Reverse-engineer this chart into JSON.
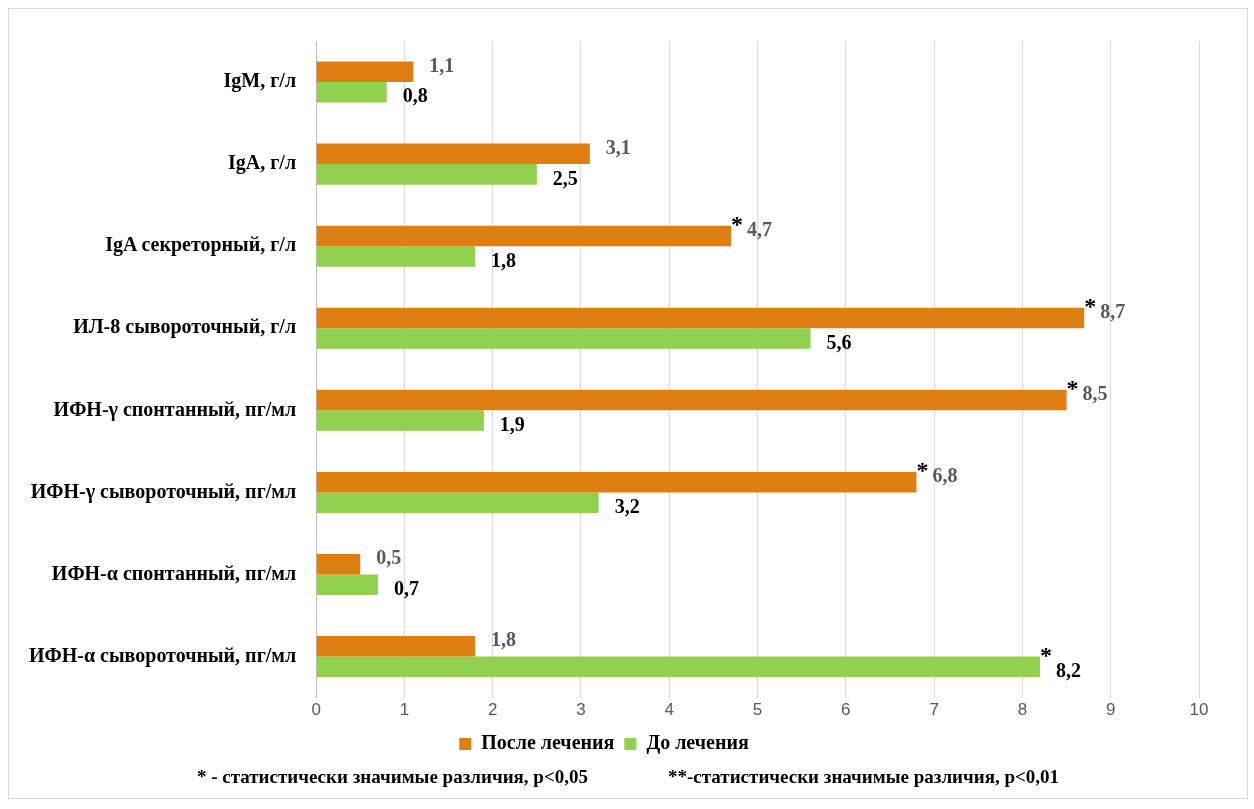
{
  "chart_data": {
    "type": "bar",
    "orientation": "horizontal",
    "categories": [
      "IgM, г/л",
      "IgA, г/л",
      "IgA секреторный, г/л",
      "ИЛ-8 сывороточный, г/л",
      "ИФН-γ спонтанный, пг/мл",
      "ИФН-γ сывороточный, пг/мл",
      "ИФН-α спонтанный, пг/мл",
      "ИФН-α сывороточный, пг/мл"
    ],
    "series": [
      {
        "name": "После лечения",
        "color": "#df7f12",
        "values": [
          1.1,
          3.1,
          4.7,
          8.7,
          8.5,
          6.8,
          0.5,
          1.8
        ],
        "value_labels": [
          "1,1",
          "3,1",
          "4,7",
          "8,7",
          "8,5",
          "6,8",
          "0,5",
          "1,8"
        ]
      },
      {
        "name": "До лечения",
        "color": "#92d050",
        "values": [
          0.8,
          2.5,
          1.8,
          5.6,
          1.9,
          3.2,
          0.7,
          8.2
        ],
        "value_labels": [
          "0,8",
          "2,5",
          "1,8",
          "5,6",
          "1,9",
          "3,2",
          "0,7",
          "8,2"
        ]
      }
    ],
    "xlim": [
      0,
      10
    ],
    "xticks": [
      0,
      1,
      2,
      3,
      4,
      5,
      6,
      7,
      8,
      9,
      10
    ],
    "grid": "x",
    "legend": "bottom",
    "annotations": [
      {
        "text": "*",
        "x": 4.7,
        "y": "IgA секреторный, г/л"
      },
      {
        "text": "*",
        "x": 8.7,
        "y": "ИЛ-8 сывороточный, г/л"
      },
      {
        "text": "*",
        "x": 8.5,
        "y": "ИФН-γ спонтанный, пг/мл"
      },
      {
        "text": "*",
        "x": 6.8,
        "y": "ИФН-γ сывороточный, пг/мл"
      },
      {
        "text": "*",
        "x": 8.2,
        "y": "ИФН-α сывороточный, пг/мл"
      },
      "* - статистически значимые различия, р<0,05",
      "**-статистически значимые различия, р<0,01"
    ]
  }
}
